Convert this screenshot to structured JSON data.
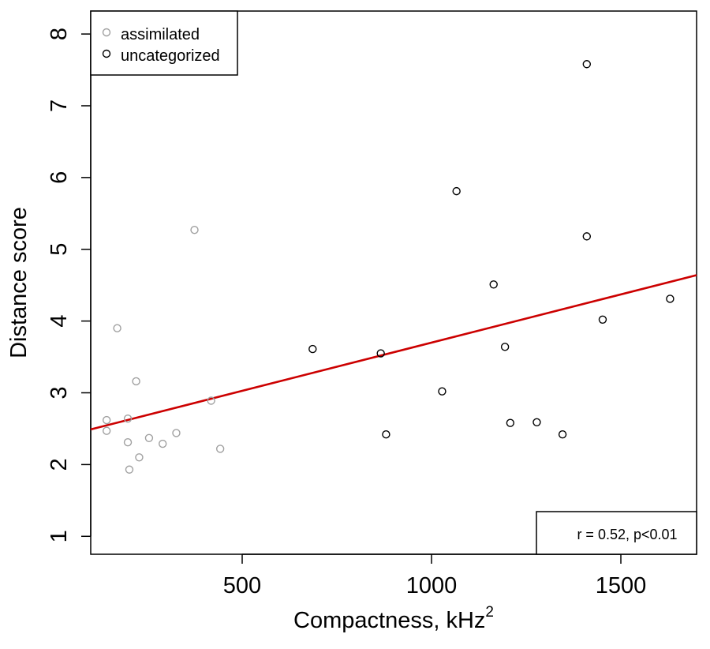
{
  "chart_data": {
    "type": "scatter",
    "title": "",
    "xlabel": "Compactness, kHz",
    "xlabel_superscript": "2",
    "ylabel": "Distance score",
    "xlim": [
      100,
      1700
    ],
    "ylim": [
      0.75,
      8.32
    ],
    "x_ticks": [
      500,
      1000,
      1500
    ],
    "y_ticks": [
      1,
      2,
      3,
      4,
      5,
      6,
      7,
      8
    ],
    "grid": false,
    "legend": {
      "position": "top-left",
      "entries": [
        "assimilated",
        "uncategorized"
      ]
    },
    "series": [
      {
        "name": "assimilated",
        "color": "#a0a0a0",
        "marker": "open-circle",
        "x": [
          142,
          142,
          170,
          198,
          198,
          202,
          220,
          228,
          254,
          290,
          326,
          374,
          418,
          442
        ],
        "y": [
          2.62,
          2.47,
          3.9,
          2.64,
          2.31,
          1.93,
          3.16,
          2.1,
          2.37,
          2.29,
          2.44,
          5.27,
          2.89,
          2.22
        ]
      },
      {
        "name": "uncategorized",
        "color": "#000000",
        "marker": "open-circle",
        "x": [
          686,
          866,
          880,
          1028,
          1066,
          1164,
          1194,
          1208,
          1278,
          1346,
          1410,
          1410,
          1452,
          1630
        ],
        "y": [
          3.61,
          3.55,
          2.42,
          3.02,
          5.81,
          4.51,
          3.64,
          2.58,
          2.59,
          2.42,
          7.58,
          5.18,
          4.02,
          4.31
        ]
      }
    ],
    "fit_line": {
      "color": "#cc0000",
      "x": [
        100,
        1700
      ],
      "y": [
        2.49,
        4.64
      ]
    },
    "annotation": {
      "text": "r = 0.52, p<0.01",
      "position": "bottom-right"
    }
  }
}
